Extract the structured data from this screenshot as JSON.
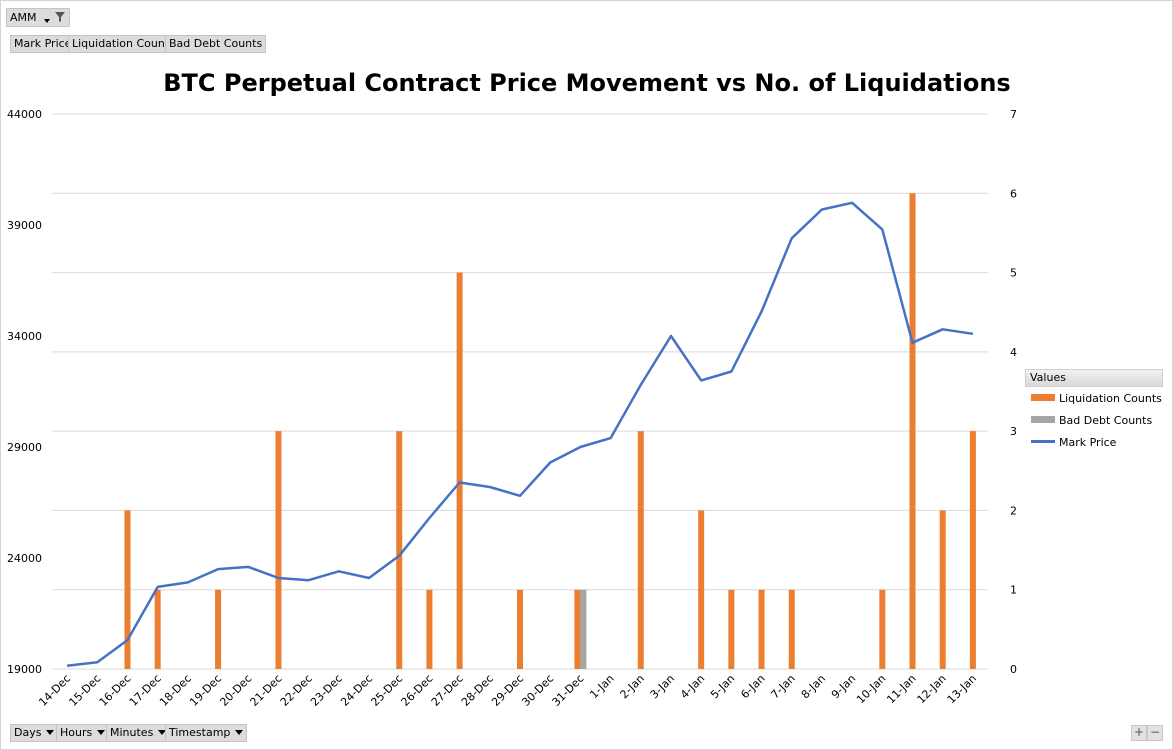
{
  "filter": {
    "label": "AMM"
  },
  "value_buttons": [
    "Mark Price",
    "Liquidation Counts",
    "Bad Debt Counts"
  ],
  "axis_buttons": [
    "Days",
    "Hours",
    "Minutes",
    "Timestamp"
  ],
  "legend": {
    "header": "Values"
  },
  "colors": {
    "liquidation": "#ED7D31",
    "bad_debt": "#A5A5A5",
    "mark_price": "#4472C4",
    "grid": "#d9d9d9"
  },
  "chart_data": {
    "type": "bar",
    "title": "BTC Perpetual Contract Price Movement vs No. of Liquidations",
    "categories": [
      "14-Dec",
      "15-Dec",
      "16-Dec",
      "17-Dec",
      "18-Dec",
      "19-Dec",
      "20-Dec",
      "21-Dec",
      "22-Dec",
      "23-Dec",
      "24-Dec",
      "25-Dec",
      "26-Dec",
      "27-Dec",
      "28-Dec",
      "29-Dec",
      "30-Dec",
      "31-Dec",
      "1-Jan",
      "2-Jan",
      "3-Jan",
      "4-Jan",
      "5-Jan",
      "6-Jan",
      "7-Jan",
      "8-Jan",
      "9-Jan",
      "10-Jan",
      "11-Jan",
      "12-Jan",
      "13-Jan"
    ],
    "y_left": {
      "ticks": [
        19000,
        24000,
        29000,
        34000,
        39000,
        44000
      ],
      "range": [
        19000,
        44000
      ]
    },
    "y_right": {
      "ticks": [
        0,
        1,
        2,
        3,
        4,
        5,
        6,
        7
      ],
      "range": [
        0,
        7
      ]
    },
    "grid": true,
    "legend_position": "right",
    "series": [
      {
        "name": "Liquidation Counts",
        "kind": "bar",
        "axis": "right",
        "values": [
          0,
          0,
          2,
          1,
          0,
          1,
          0,
          3,
          0,
          0,
          0,
          3,
          1,
          5,
          0,
          1,
          0,
          1,
          0,
          3,
          0,
          2,
          1,
          1,
          1,
          0,
          0,
          1,
          6,
          2,
          3
        ]
      },
      {
        "name": "Bad Debt Counts",
        "kind": "bar",
        "axis": "right",
        "values": [
          0,
          0,
          0,
          0,
          0,
          0,
          0,
          0,
          0,
          0,
          0,
          0,
          0,
          0,
          0,
          0,
          0,
          1,
          0,
          0,
          0,
          0,
          0,
          0,
          0,
          0,
          0,
          0,
          0,
          0,
          0
        ]
      },
      {
        "name": "Mark Price",
        "kind": "line",
        "axis": "left",
        "values": [
          19150,
          19300,
          20300,
          22700,
          22900,
          23500,
          23600,
          23100,
          23000,
          23400,
          23100,
          24100,
          25800,
          27400,
          27200,
          26800,
          28300,
          29000,
          29400,
          31800,
          34000,
          32000,
          32400,
          35100,
          38400,
          39700,
          40000,
          38800,
          33700,
          34300,
          34100
        ]
      }
    ]
  }
}
